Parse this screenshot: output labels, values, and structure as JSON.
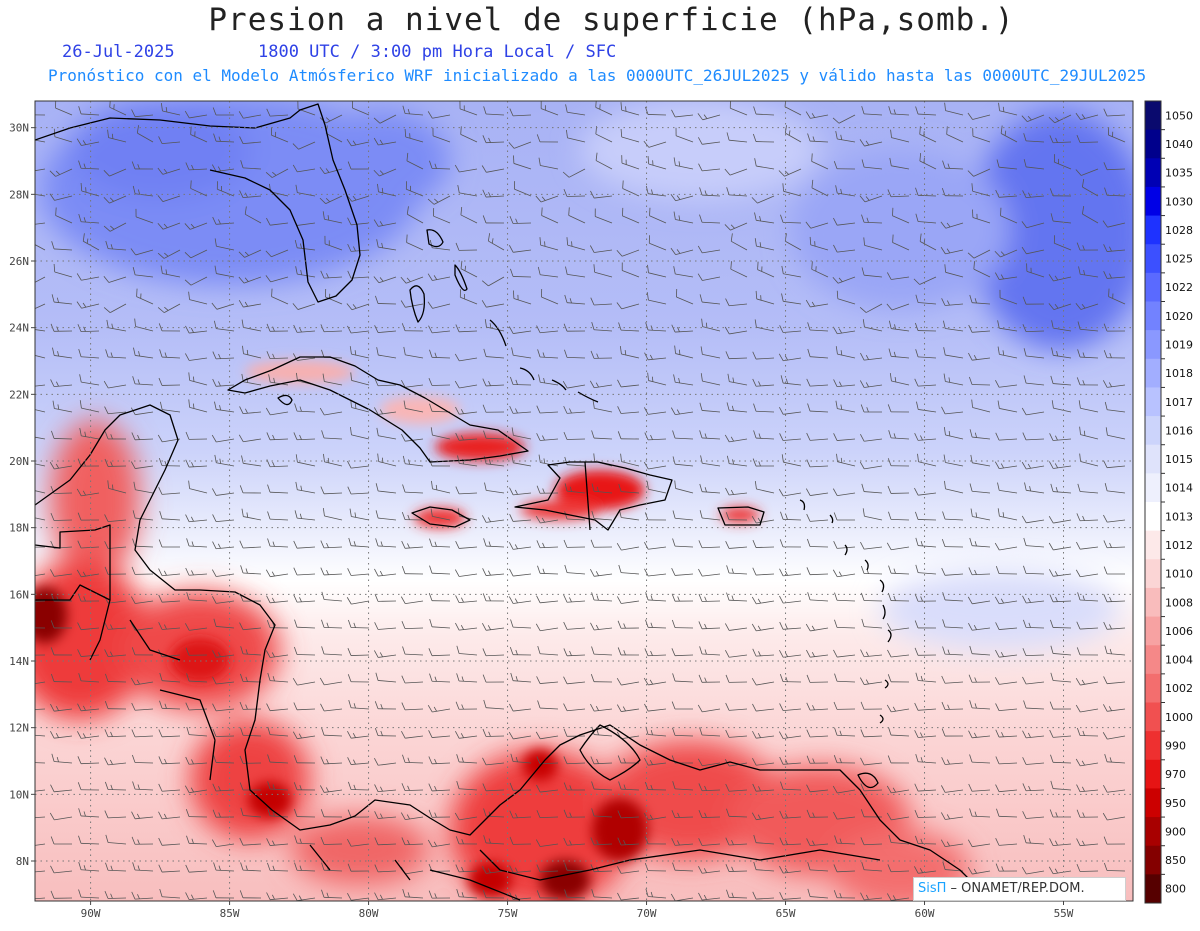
{
  "header": {
    "title": "Presion a nivel de superficie (hPa,somb.)",
    "date": "26-Jul-2025",
    "time": "1800 UTC / 3:00 pm Hora Local / SFC",
    "forecast_note": "Pronóstico con el Modelo Atmósferico WRF inicializado a las 0000UTC_26JUL2025 y válido hasta las  0000UTC_29JUL2025"
  },
  "map": {
    "lon_range": [
      -92,
      -52.5
    ],
    "lat_range": [
      6.8,
      30.8
    ],
    "lat_ticks": [
      {
        "value": 30,
        "label": "30N"
      },
      {
        "value": 28,
        "label": "28N"
      },
      {
        "value": 26,
        "label": "26N"
      },
      {
        "value": 24,
        "label": "24N"
      },
      {
        "value": 22,
        "label": "22N"
      },
      {
        "value": 20,
        "label": "20N"
      },
      {
        "value": 18,
        "label": "18N"
      },
      {
        "value": 16,
        "label": "16N"
      },
      {
        "value": 14,
        "label": "14N"
      },
      {
        "value": 12,
        "label": "12N"
      },
      {
        "value": 10,
        "label": "10N"
      },
      {
        "value": 8,
        "label": "8N"
      }
    ],
    "lon_ticks": [
      {
        "value": -90,
        "label": "90W"
      },
      {
        "value": -85,
        "label": "85W"
      },
      {
        "value": -80,
        "label": "80W"
      },
      {
        "value": -75,
        "label": "75W"
      },
      {
        "value": -70,
        "label": "70W"
      },
      {
        "value": -65,
        "label": "65W"
      },
      {
        "value": -60,
        "label": "60W"
      },
      {
        "value": -55,
        "label": "55W"
      }
    ],
    "grid": true,
    "variable": "surface pressure shaded with wind barbs"
  },
  "colorbar": {
    "levels": [
      {
        "label": "1050",
        "color": "#0a0a6e"
      },
      {
        "label": "1040",
        "color": "#00008c"
      },
      {
        "label": "1035",
        "color": "#0000b4"
      },
      {
        "label": "1030",
        "color": "#0000e6"
      },
      {
        "label": "1028",
        "color": "#1e32ff"
      },
      {
        "label": "1025",
        "color": "#3c50ff"
      },
      {
        "label": "1022",
        "color": "#5a6aff"
      },
      {
        "label": "1020",
        "color": "#7282ff"
      },
      {
        "label": "1019",
        "color": "#8a98ff"
      },
      {
        "label": "1018",
        "color": "#a2aeff"
      },
      {
        "label": "1017",
        "color": "#b8c2ff"
      },
      {
        "label": "1016",
        "color": "#ccd4fb"
      },
      {
        "label": "1015",
        "color": "#dfe3fb"
      },
      {
        "label": "1014",
        "color": "#eef0fd"
      },
      {
        "label": "1013",
        "color": "#ffffff"
      },
      {
        "label": "1012",
        "color": "#fde9e9"
      },
      {
        "label": "1010",
        "color": "#fbd5d5"
      },
      {
        "label": "1008",
        "color": "#f9bcbc"
      },
      {
        "label": "1006",
        "color": "#f7a2a2"
      },
      {
        "label": "1004",
        "color": "#f58888"
      },
      {
        "label": "1002",
        "color": "#f36e6e"
      },
      {
        "label": "1000",
        "color": "#f15050"
      },
      {
        "label": "990",
        "color": "#ee3030"
      },
      {
        "label": "970",
        "color": "#e61414"
      },
      {
        "label": "950",
        "color": "#cc0000"
      },
      {
        "label": "900",
        "color": "#a80000"
      },
      {
        "label": "850",
        "color": "#840000"
      },
      {
        "label": "800",
        "color": "#560000"
      }
    ]
  },
  "credit": {
    "brand": "SisΠ",
    "text": " – ONAMET/REP.DOM."
  }
}
